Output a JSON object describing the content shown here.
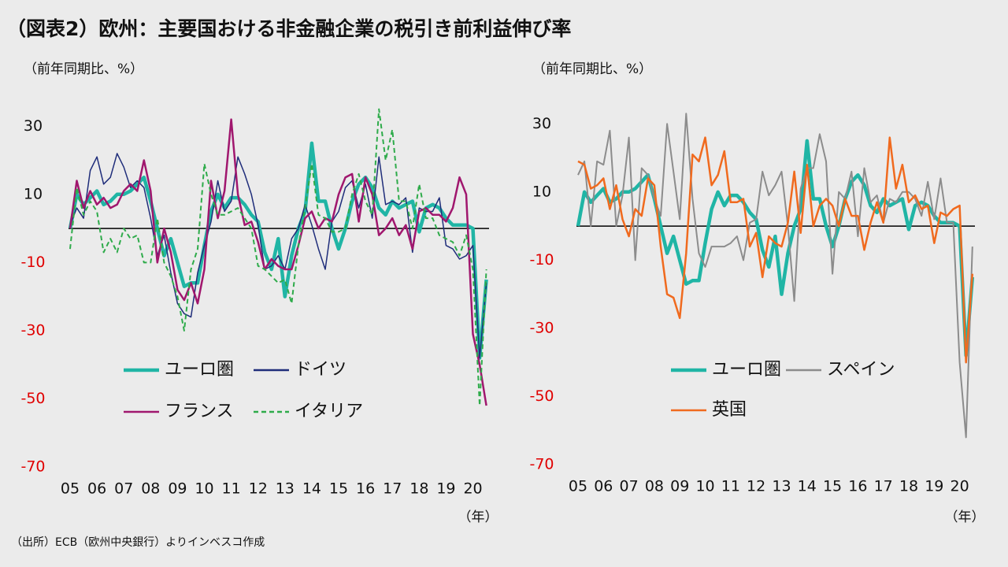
{
  "title": "（図表2）欧州：主要国おける非金融企業の税引き前利益伸び率",
  "source": "（出所）ECB（欧州中央銀行）よりインベスコ作成",
  "chart_data": [
    {
      "type": "line",
      "y_label": "（前年同期比、%）",
      "x_label": "（年）",
      "x": [
        2005,
        2005.25,
        2005.5,
        2005.75,
        2006,
        2006.25,
        2006.5,
        2006.75,
        2007,
        2007.25,
        2007.5,
        2007.75,
        2008,
        2008.25,
        2008.5,
        2008.75,
        2009,
        2009.25,
        2009.5,
        2009.75,
        2010,
        2010.25,
        2010.5,
        2010.75,
        2011,
        2011.25,
        2011.5,
        2011.75,
        2012,
        2012.25,
        2012.5,
        2012.75,
        2013,
        2013.25,
        2013.5,
        2013.75,
        2014,
        2014.25,
        2014.5,
        2014.75,
        2015,
        2015.25,
        2015.5,
        2015.75,
        2016,
        2016.25,
        2016.5,
        2016.75,
        2017,
        2017.25,
        2017.5,
        2017.75,
        2018,
        2018.25,
        2018.5,
        2018.75,
        2019,
        2019.25,
        2019.5,
        2019.75,
        2020,
        2020.25,
        2020.5
      ],
      "xlim": [
        2005,
        2020.6
      ],
      "xticks": [
        {
          "value": 2005,
          "label": "05"
        },
        {
          "value": 2006,
          "label": "06"
        },
        {
          "value": 2007,
          "label": "07"
        },
        {
          "value": 2008,
          "label": "08"
        },
        {
          "value": 2009,
          "label": "09"
        },
        {
          "value": 2010,
          "label": "10"
        },
        {
          "value": 2011,
          "label": "11"
        },
        {
          "value": 2012,
          "label": "12"
        },
        {
          "value": 2013,
          "label": "13"
        },
        {
          "value": 2014,
          "label": "14"
        },
        {
          "value": 2015,
          "label": "15"
        },
        {
          "value": 2016,
          "label": "16"
        },
        {
          "value": 2017,
          "label": "17"
        },
        {
          "value": 2018,
          "label": "18"
        },
        {
          "value": 2019,
          "label": "19"
        },
        {
          "value": 2020,
          "label": "20"
        }
      ],
      "ylim": [
        -70,
        40
      ],
      "yticks": [
        -70,
        -50,
        -30,
        -10,
        10,
        30
      ],
      "negative_tick_color": "#e00000",
      "series": [
        {
          "name": "ユーロ圏",
          "color": "#20b5a5",
          "values": [
            0,
            10,
            7,
            9,
            11,
            7,
            8,
            10,
            10,
            11,
            13,
            15,
            8,
            0,
            -8,
            -3,
            -10,
            -17,
            -16,
            -16,
            -5,
            5,
            10,
            6,
            9,
            9,
            7,
            4,
            2,
            -7,
            -12,
            -3,
            -20,
            -8,
            0,
            5,
            25,
            8,
            8,
            0,
            -6,
            0,
            8,
            13,
            15,
            12,
            6,
            4,
            8,
            6,
            7,
            8,
            -1,
            6,
            7,
            6,
            3,
            1,
            1,
            1,
            0,
            -38,
            -15
          ]
        },
        {
          "name": "ドイツ",
          "color": "#1f2d7a",
          "values": [
            1,
            6,
            3,
            17,
            21,
            13,
            15,
            22,
            18,
            12,
            14,
            12,
            3,
            -8,
            -2,
            -13,
            -22,
            -25,
            -26,
            -13,
            -5,
            2,
            14,
            5,
            8,
            21,
            16,
            10,
            1,
            -12,
            -11,
            -8,
            -12,
            -3,
            0,
            7,
            1,
            -6,
            -12,
            2,
            5,
            12,
            14,
            6,
            13,
            3,
            21,
            7,
            8,
            7,
            9,
            -7,
            6,
            5,
            5,
            9,
            -5,
            -6,
            -9,
            -8,
            -5,
            -38,
            -16
          ]
        },
        {
          "name": "フランス",
          "color": "#a0176e",
          "values": [
            0,
            14,
            6,
            11,
            7,
            9,
            6,
            7,
            11,
            13,
            11,
            20,
            11,
            -10,
            0,
            -7,
            -18,
            -21,
            -16,
            -22,
            -12,
            14,
            3,
            11,
            32,
            10,
            1,
            2,
            -4,
            -12,
            -9,
            -11,
            -12,
            -12,
            -5,
            3,
            5,
            0,
            3,
            2,
            10,
            15,
            16,
            2,
            15,
            10,
            -2,
            0,
            3,
            -2,
            1,
            -6,
            5,
            6,
            4,
            4,
            2,
            6,
            15,
            10,
            -31,
            -40,
            -52
          ]
        },
        {
          "name": "イタリア",
          "color": "#2eab4a",
          "dashed": true,
          "values": [
            -6,
            12,
            4,
            8,
            5,
            -7,
            -3,
            -7,
            0,
            -3,
            -2,
            -10,
            -10,
            3,
            -10,
            -14,
            -20,
            -30,
            -12,
            -6,
            19,
            10,
            4,
            4,
            5,
            6,
            3,
            0,
            -11,
            -12,
            -14,
            -16,
            -15,
            -22,
            -5,
            6,
            19,
            4,
            3,
            -1,
            -1,
            0,
            10,
            16,
            8,
            4,
            35,
            20,
            29,
            8,
            8,
            0,
            13,
            3,
            3,
            -2,
            -3,
            -4,
            -8,
            -2,
            -12,
            -52,
            -12
          ]
        }
      ]
    },
    {
      "type": "line",
      "y_label": "（前年同期比、%）",
      "x_label": "（年）",
      "x": [
        2005,
        2005.25,
        2005.5,
        2005.75,
        2006,
        2006.25,
        2006.5,
        2006.75,
        2007,
        2007.25,
        2007.5,
        2007.75,
        2008,
        2008.25,
        2008.5,
        2008.75,
        2009,
        2009.25,
        2009.5,
        2009.75,
        2010,
        2010.25,
        2010.5,
        2010.75,
        2011,
        2011.25,
        2011.5,
        2011.75,
        2012,
        2012.25,
        2012.5,
        2012.75,
        2013,
        2013.25,
        2013.5,
        2013.75,
        2014,
        2014.25,
        2014.5,
        2014.75,
        2015,
        2015.25,
        2015.5,
        2015.75,
        2016,
        2016.25,
        2016.5,
        2016.75,
        2017,
        2017.25,
        2017.5,
        2017.75,
        2018,
        2018.25,
        2018.5,
        2018.75,
        2019,
        2019.25,
        2019.5,
        2019.75,
        2020,
        2020.25,
        2020.5
      ],
      "xlim": [
        2005,
        2020.6
      ],
      "xticks": [
        {
          "value": 2005,
          "label": "05"
        },
        {
          "value": 2006,
          "label": "06"
        },
        {
          "value": 2007,
          "label": "07"
        },
        {
          "value": 2008,
          "label": "08"
        },
        {
          "value": 2009,
          "label": "09"
        },
        {
          "value": 2010,
          "label": "10"
        },
        {
          "value": 2011,
          "label": "11"
        },
        {
          "value": 2012,
          "label": "12"
        },
        {
          "value": 2013,
          "label": "13"
        },
        {
          "value": 2014,
          "label": "14"
        },
        {
          "value": 2015,
          "label": "15"
        },
        {
          "value": 2016,
          "label": "16"
        },
        {
          "value": 2017,
          "label": "17"
        },
        {
          "value": 2018,
          "label": "18"
        },
        {
          "value": 2019,
          "label": "19"
        },
        {
          "value": 2020,
          "label": "20"
        }
      ],
      "ylim": [
        -70,
        40
      ],
      "yticks": [
        -70,
        -50,
        -30,
        -10,
        10,
        30
      ],
      "negative_tick_color": "#e00000",
      "series": [
        {
          "name": "ユーロ圏",
          "color": "#20b5a5",
          "values": [
            0,
            10,
            7,
            9,
            11,
            7,
            8,
            10,
            10,
            11,
            13,
            15,
            8,
            0,
            -8,
            -3,
            -10,
            -17,
            -16,
            -16,
            -5,
            5,
            10,
            6,
            9,
            9,
            7,
            4,
            2,
            -7,
            -12,
            -3,
            -20,
            -8,
            0,
            5,
            25,
            8,
            8,
            0,
            -6,
            0,
            8,
            13,
            15,
            12,
            6,
            4,
            8,
            6,
            7,
            8,
            -1,
            6,
            7,
            6,
            3,
            1,
            1,
            1,
            0,
            -38,
            -15
          ]
        },
        {
          "name": "スペイン",
          "color": "#8c8c8c",
          "values": [
            15,
            19,
            0,
            19,
            18,
            28,
            0,
            9,
            26,
            -10,
            17,
            15,
            8,
            3,
            30,
            16,
            2,
            33,
            8,
            -8,
            -12,
            -6,
            -6,
            -6,
            -5,
            -3,
            -10,
            1,
            2,
            16,
            9,
            12,
            16,
            0,
            -22,
            11,
            17,
            17,
            27,
            19,
            -14,
            10,
            8,
            16,
            -3,
            17,
            7,
            9,
            1,
            8,
            7,
            10,
            10,
            8,
            3,
            13,
            2,
            14,
            1,
            1,
            -40,
            -62,
            -6
          ]
        },
        {
          "name": "英国",
          "color": "#f06a1e",
          "values": [
            19,
            18,
            11,
            12,
            14,
            5,
            12,
            2,
            -3,
            5,
            3,
            14,
            12,
            -6,
            -20,
            -21,
            -27,
            -8,
            21,
            19,
            26,
            12,
            15,
            22,
            7,
            7,
            8,
            -6,
            -2,
            -15,
            -3,
            -5,
            -6,
            1,
            16,
            -2,
            18,
            0,
            6,
            8,
            6,
            0,
            8,
            3,
            3,
            -7,
            1,
            7,
            1,
            26,
            11,
            18,
            7,
            9,
            5,
            6,
            -5,
            4,
            3,
            5,
            6,
            -40,
            -14
          ]
        }
      ]
    }
  ]
}
